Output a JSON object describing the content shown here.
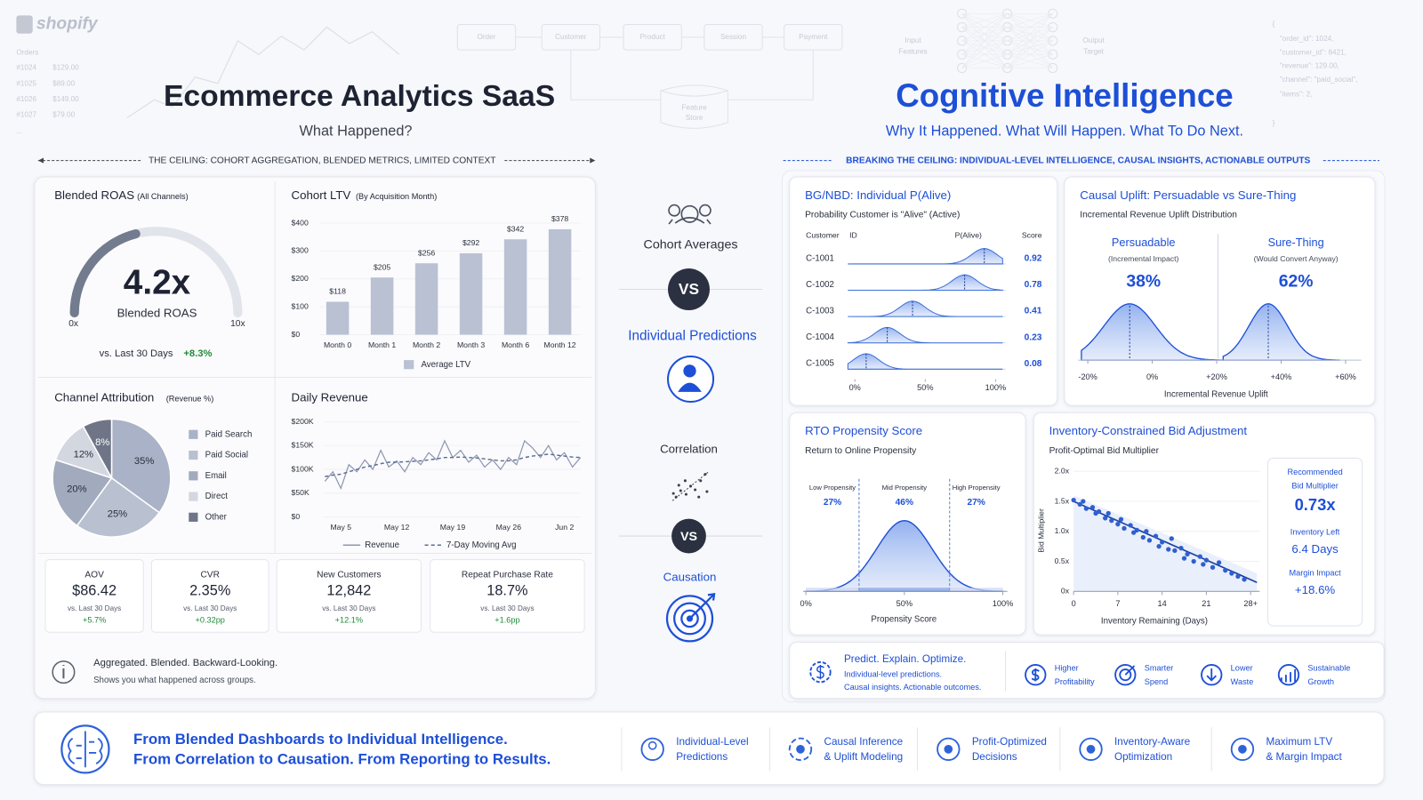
{
  "background": {
    "logo": "shopify",
    "orders_title": "Orders",
    "orders": [
      [
        "#1024",
        "$129.00"
      ],
      [
        "#1025",
        "$89.00"
      ],
      [
        "#1026",
        "$149.00"
      ],
      [
        "#1027",
        "$79.00"
      ]
    ],
    "orders_more": "...",
    "flow": [
      "Order",
      "Customer",
      "Product",
      "Session",
      "Payment"
    ],
    "store": [
      "Feature",
      "Store"
    ],
    "nn_in": [
      "Input",
      "Features"
    ],
    "nn_out": [
      "Output",
      "Target"
    ],
    "json": [
      "{",
      "\"order_id\": 1024,",
      "\"customer_id\": 8421,",
      "\"revenue\": 129.00,",
      "\"channel\": \"paid_social\",",
      "\"items\": 2,",
      "}"
    ]
  },
  "left": {
    "title": "Ecommerce Analytics SaaS",
    "subtitle": "What Happened?",
    "banner": "THE CEILING: COHORT AGGREGATION, BLENDED METRICS, LIMITED CONTEXT",
    "roas": {
      "title": "Blended ROAS",
      "note": "(All Channels)",
      "value": 4.2,
      "value_label": "4.2x",
      "min": {
        "value": 0,
        "label": "0x"
      },
      "max": {
        "value": 10,
        "label": "10x"
      },
      "caption": "Blended ROAS",
      "compare": "vs. Last 30 Days",
      "change": "+8.3%"
    },
    "cohort": {
      "title": "Cohort LTV",
      "note": "(By Acquisition Month)",
      "categories": [
        "Month 0",
        "Month 1",
        "Month 2",
        "Month 3",
        "Month 6",
        "Month 12"
      ],
      "values": [
        118,
        205,
        256,
        292,
        342,
        378
      ],
      "value_labels": [
        "$118",
        "$205",
        "$256",
        "$292",
        "$342",
        "$378"
      ],
      "ylim": [
        0,
        400
      ],
      "yticks": [
        {
          "value": 0,
          "label": "$0"
        },
        {
          "value": 100,
          "label": "$100"
        },
        {
          "value": 200,
          "label": "$200"
        },
        {
          "value": 300,
          "label": "$300"
        },
        {
          "value": 400,
          "label": "$400"
        }
      ],
      "legend": "Average LTV",
      "color": "#b9c1d3"
    },
    "attribution": {
      "title": "Channel Attribution",
      "note": "(Revenue %)",
      "categories": [
        "Paid Search",
        "Paid Social",
        "Email",
        "Direct",
        "Other"
      ],
      "values": [
        35,
        25,
        20,
        12,
        8
      ],
      "value_labels": [
        "35%",
        "25%",
        "20%",
        "12%",
        "8%"
      ],
      "colors": [
        "#a9b2c6",
        "#b9c0d0",
        "#a2aabd",
        "#d3d7e0",
        "#6f7587"
      ]
    },
    "revenue": {
      "title": "Daily Revenue",
      "categories": [
        null,
        null,
        "May 5",
        null,
        null,
        null,
        null,
        null,
        null,
        "May 12",
        null,
        null,
        null,
        null,
        null,
        null,
        "May 19",
        null,
        null,
        null,
        null,
        null,
        null,
        "May 26",
        null,
        null,
        null,
        null,
        null,
        null,
        "Jun 2",
        null,
        null
      ],
      "series": [
        {
          "name": "Revenue",
          "color": "#8d97b0",
          "dashed": false,
          "values": [
            75000,
            95000,
            60000,
            110000,
            95000,
            120000,
            100000,
            140000,
            105000,
            118000,
            95000,
            125000,
            110000,
            135000,
            120000,
            160000,
            125000,
            140000,
            115000,
            130000,
            105000,
            120000,
            100000,
            125000,
            110000,
            160000,
            145000,
            125000,
            150000,
            120000,
            135000,
            105000,
            125000
          ]
        },
        {
          "name": "7-Day Moving Avg",
          "color": "#5b6b93",
          "dashed": true,
          "values": [
            85000,
            88000,
            90000,
            95000,
            100000,
            105000,
            108000,
            112000,
            115000,
            115000,
            116000,
            117000,
            118000,
            120000,
            122000,
            125000,
            125000,
            126000,
            125000,
            124000,
            122000,
            120000,
            118000,
            118000,
            120000,
            125000,
            128000,
            130000,
            132000,
            130000,
            128000,
            126000,
            125000
          ]
        }
      ],
      "ylim": [
        0,
        200000
      ],
      "yticks": [
        {
          "value": 0,
          "label": "$0"
        },
        {
          "value": 50000,
          "label": "$50K"
        },
        {
          "value": 100000,
          "label": "$100K"
        },
        {
          "value": 150000,
          "label": "$150K"
        },
        {
          "value": 200000,
          "label": "$200K"
        }
      ]
    },
    "kpis": [
      {
        "label": "AOV",
        "value": "$86.42",
        "compare": "vs. Last 30 Days",
        "change": "+5.7%"
      },
      {
        "label": "CVR",
        "value": "2.35%",
        "compare": "vs. Last 30 Days",
        "change": "+0.32pp"
      },
      {
        "label": "New Customers",
        "value": "12,842",
        "compare": "vs. Last 30 Days",
        "change": "+12.1%"
      },
      {
        "label": "Repeat Purchase Rate",
        "value": "18.7%",
        "compare": "vs. Last 30 Days",
        "change": "+1.6pp"
      }
    ],
    "note": {
      "headline": "Aggregated. Blended. Backward-Looking.",
      "text": "Shows you what happened across groups."
    }
  },
  "middle": {
    "top": "Cohort Averages",
    "vs1": "VS",
    "mid": "Individual Predictions",
    "corr": "Correlation",
    "vs2": "VS",
    "cause": "Causation"
  },
  "right": {
    "title": "Cognitive Intelligence",
    "subtitle": "Why It Happened. What Will Happen. What To Do Next.",
    "banner": "BREAKING THE CEILING: INDIVIDUAL-LEVEL INTELLIGENCE, CAUSAL INSIGHTS, ACTIONABLE OUTPUTS",
    "bgnbd": {
      "title": "BG/NBD: Individual P(Alive)",
      "subtitle": "Probability Customer is \"Alive\" (Active)",
      "headers": [
        "Customer",
        "ID",
        "P(Alive)",
        "Score"
      ],
      "customers": [
        "C-1001",
        "C-1002",
        "C-1003",
        "C-1004",
        "C-1005"
      ],
      "scores": [
        0.92,
        0.78,
        0.41,
        0.23,
        0.08
      ],
      "xlim": [
        0,
        1
      ],
      "xticks": [
        {
          "value": 0,
          "label": "0%"
        },
        {
          "value": 0.5,
          "label": "50%"
        },
        {
          "value": 1,
          "label": "100%"
        }
      ]
    },
    "causal": {
      "title": "Causal Uplift: Persuadable vs Sure-Thing",
      "subtitle": "Incremental Revenue Uplift Distribution",
      "groups": [
        {
          "name": "Persuadable",
          "note": "(Incremental Impact)",
          "share": "38%"
        },
        {
          "name": "Sure-Thing",
          "note": "(Would Convert Anyway)",
          "share": "62%"
        }
      ],
      "peaks": [
        -7,
        36
      ],
      "xlim": [
        -23,
        66
      ],
      "xticks": [
        {
          "value": -20,
          "label": "-20%"
        },
        {
          "value": 0,
          "label": "0%"
        },
        {
          "value": 20,
          "label": "+20%"
        },
        {
          "value": 40,
          "label": "+40%"
        },
        {
          "value": 60,
          "label": "+60%"
        }
      ],
      "xlabel": "Incremental Revenue Uplift"
    },
    "rto": {
      "title": "RTO Propensity Score",
      "subtitle": "Return to Online Propensity",
      "segments": [
        "Low Propensity",
        "Mid Propensity",
        "High Propensity"
      ],
      "shares": [
        27,
        46,
        27
      ],
      "share_labels": [
        "27%",
        "46%",
        "27%"
      ],
      "xlim": [
        0,
        100
      ],
      "xticks": [
        {
          "value": 0,
          "label": "0%"
        },
        {
          "value": 50,
          "label": "50%"
        },
        {
          "value": 100,
          "label": "100%"
        }
      ],
      "xlabel": "Propensity Score"
    },
    "inventory": {
      "title": "Inventory-Constrained Bid Adjustment",
      "subtitle": "Profit-Optimal Bid Multiplier",
      "ylabel": "Bid Multiplier",
      "ylim": [
        0,
        2.1
      ],
      "yticks": [
        {
          "value": 0,
          "label": "0x"
        },
        {
          "value": 0.5,
          "label": "0.5x"
        },
        {
          "value": 1,
          "label": "1.0x"
        },
        {
          "value": 1.5,
          "label": "1.5x"
        },
        {
          "value": 2,
          "label": "2.0x"
        }
      ],
      "xlim": [
        0,
        29
      ],
      "xticks": [
        0,
        7,
        14,
        21,
        {
          "value": 28,
          "label": "28+"
        }
      ],
      "xlabel": "Inventory Remaining (Days)",
      "points": {
        "x": [
          0,
          1,
          1.5,
          2,
          3,
          3.5,
          4,
          5,
          5.5,
          6,
          7,
          7.5,
          8,
          9,
          9.5,
          10,
          11,
          11.5,
          12,
          13,
          13.5,
          14,
          15,
          15.5,
          16,
          17,
          17.5,
          18,
          19,
          20,
          20.5,
          21,
          22,
          23,
          24,
          25,
          26,
          27
        ],
        "y": [
          1.52,
          1.45,
          1.5,
          1.38,
          1.4,
          1.3,
          1.33,
          1.22,
          1.3,
          1.18,
          1.12,
          1.2,
          1.05,
          1.1,
          0.98,
          1.02,
          0.9,
          1.0,
          0.85,
          0.92,
          0.75,
          0.82,
          0.7,
          0.88,
          0.68,
          0.72,
          0.55,
          0.62,
          0.5,
          0.58,
          0.45,
          0.52,
          0.4,
          0.48,
          0.35,
          0.3,
          0.25,
          0.2
        ]
      },
      "trend": {
        "x": [
          0,
          29
        ],
        "y": [
          1.5,
          0.15
        ]
      },
      "summary": [
        {
          "label": [
            "Recommended",
            "Bid Multiplier"
          ],
          "value": "0.73x"
        },
        {
          "label": [
            "Inventory Left"
          ],
          "value": "6.4 Days"
        },
        {
          "label": [
            "Margin Impact"
          ],
          "value": "+18.6%"
        }
      ]
    },
    "strip": {
      "headline": "Predict. Explain. Optimize.",
      "lines": [
        "Individual-level predictions.",
        "Causal insights. Actionable outcomes."
      ],
      "items": [
        [
          "Higher",
          "Profitability"
        ],
        [
          "Smarter",
          "Spend"
        ],
        [
          "Lower",
          "Waste"
        ],
        [
          "Sustainable",
          "Growth"
        ]
      ]
    }
  },
  "banner": {
    "lines": [
      "From Blended Dashboards to Individual Intelligence.",
      "From Correlation to Causation. From Reporting to Results."
    ],
    "items": [
      [
        "Individual-Level",
        "Predictions"
      ],
      [
        "Causal Inference",
        "& Uplift Modeling"
      ],
      [
        "Profit-Optimized",
        "Decisions"
      ],
      [
        "Inventory-Aware",
        "Optimization"
      ],
      [
        "Maximum LTV",
        "& Margin Impact"
      ]
    ]
  }
}
